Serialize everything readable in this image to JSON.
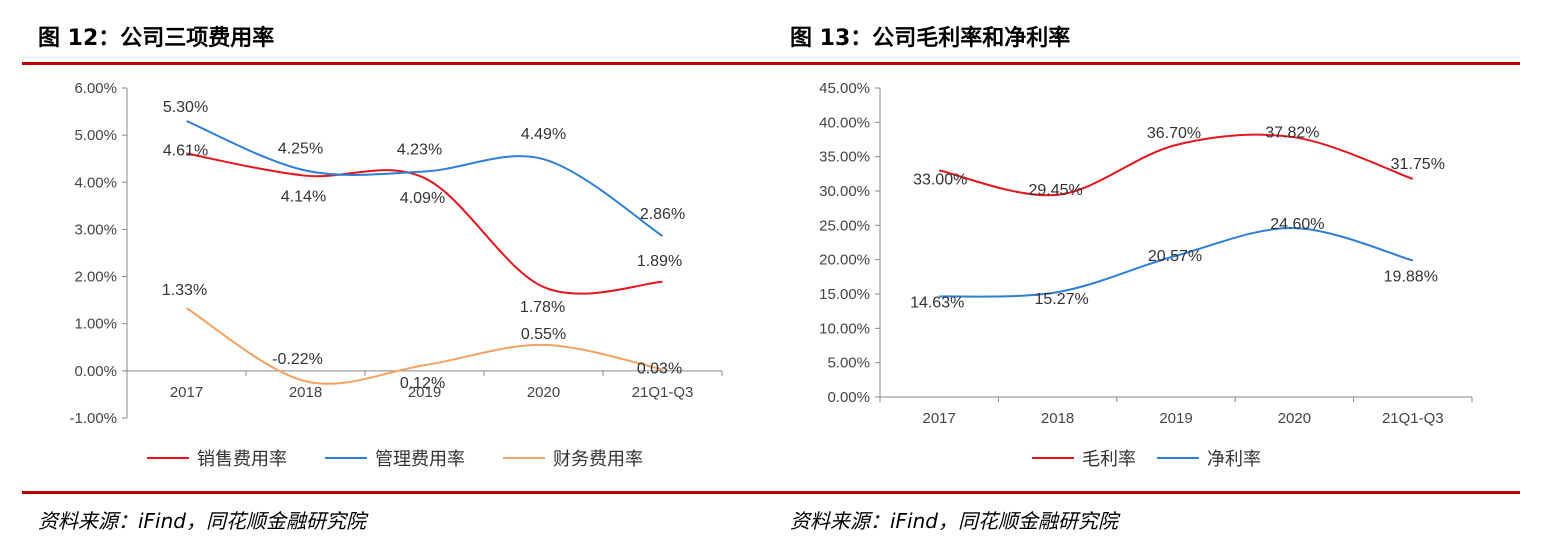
{
  "left": {
    "title": "图 12：公司三项费用率",
    "source": "资料来源：iFind，同花顺金融研究院"
  },
  "right": {
    "title": "图 13：公司毛利率和净利率",
    "source": "资料来源：iFind，同花顺金融研究院"
  },
  "colors": {
    "rule": "#c00000",
    "red": "#e3161f",
    "blue": "#2f7ed8",
    "orange": "#f4a261"
  },
  "chart_data": [
    {
      "type": "line",
      "title": "",
      "categories": [
        "2017",
        "2018",
        "2019",
        "2020",
        "21Q1-Q3"
      ],
      "ylim": [
        -1,
        6
      ],
      "yticks": [
        "-1.00%",
        "0.00%",
        "1.00%",
        "2.00%",
        "3.00%",
        "4.00%",
        "5.00%",
        "6.00%"
      ],
      "series": [
        {
          "name": "销售费用率",
          "color": "#e3161f",
          "values": [
            4.61,
            4.14,
            4.09,
            1.78,
            1.89
          ],
          "labels": [
            "4.61%",
            "4.14%",
            "4.09%",
            "1.78%",
            "1.89%"
          ]
        },
        {
          "name": "管理费用率",
          "color": "#2f7ed8",
          "values": [
            5.3,
            4.25,
            4.23,
            4.49,
            2.86
          ],
          "labels": [
            "5.30%",
            "4.25%",
            "4.23%",
            "4.49%",
            "2.86%"
          ]
        },
        {
          "name": "财务费用率",
          "color": "#f4a261",
          "values": [
            1.33,
            -0.22,
            0.12,
            0.55,
            0.03
          ],
          "labels": [
            "1.33%",
            "-0.22%",
            "0.12%",
            "0.55%",
            "0.03%"
          ]
        }
      ],
      "legend": "bottom"
    },
    {
      "type": "line",
      "title": "",
      "categories": [
        "2017",
        "2018",
        "2019",
        "2020",
        "21Q1-Q3"
      ],
      "ylim": [
        0,
        45
      ],
      "yticks": [
        "0.00%",
        "5.00%",
        "10.00%",
        "15.00%",
        "20.00%",
        "25.00%",
        "30.00%",
        "35.00%",
        "40.00%",
        "45.00%"
      ],
      "series": [
        {
          "name": "毛利率",
          "color": "#e3161f",
          "values": [
            33.0,
            29.45,
            36.7,
            37.82,
            31.75
          ],
          "labels": [
            "33.00%",
            "29.45%",
            "36.70%",
            "37.82%",
            "31.75%"
          ]
        },
        {
          "name": "净利率",
          "color": "#2f7ed8",
          "values": [
            14.63,
            15.27,
            20.57,
            24.6,
            19.88
          ],
          "labels": [
            "14.63%",
            "15.27%",
            "20.57%",
            "24.60%",
            "19.88%"
          ]
        }
      ],
      "legend": "bottom"
    }
  ]
}
